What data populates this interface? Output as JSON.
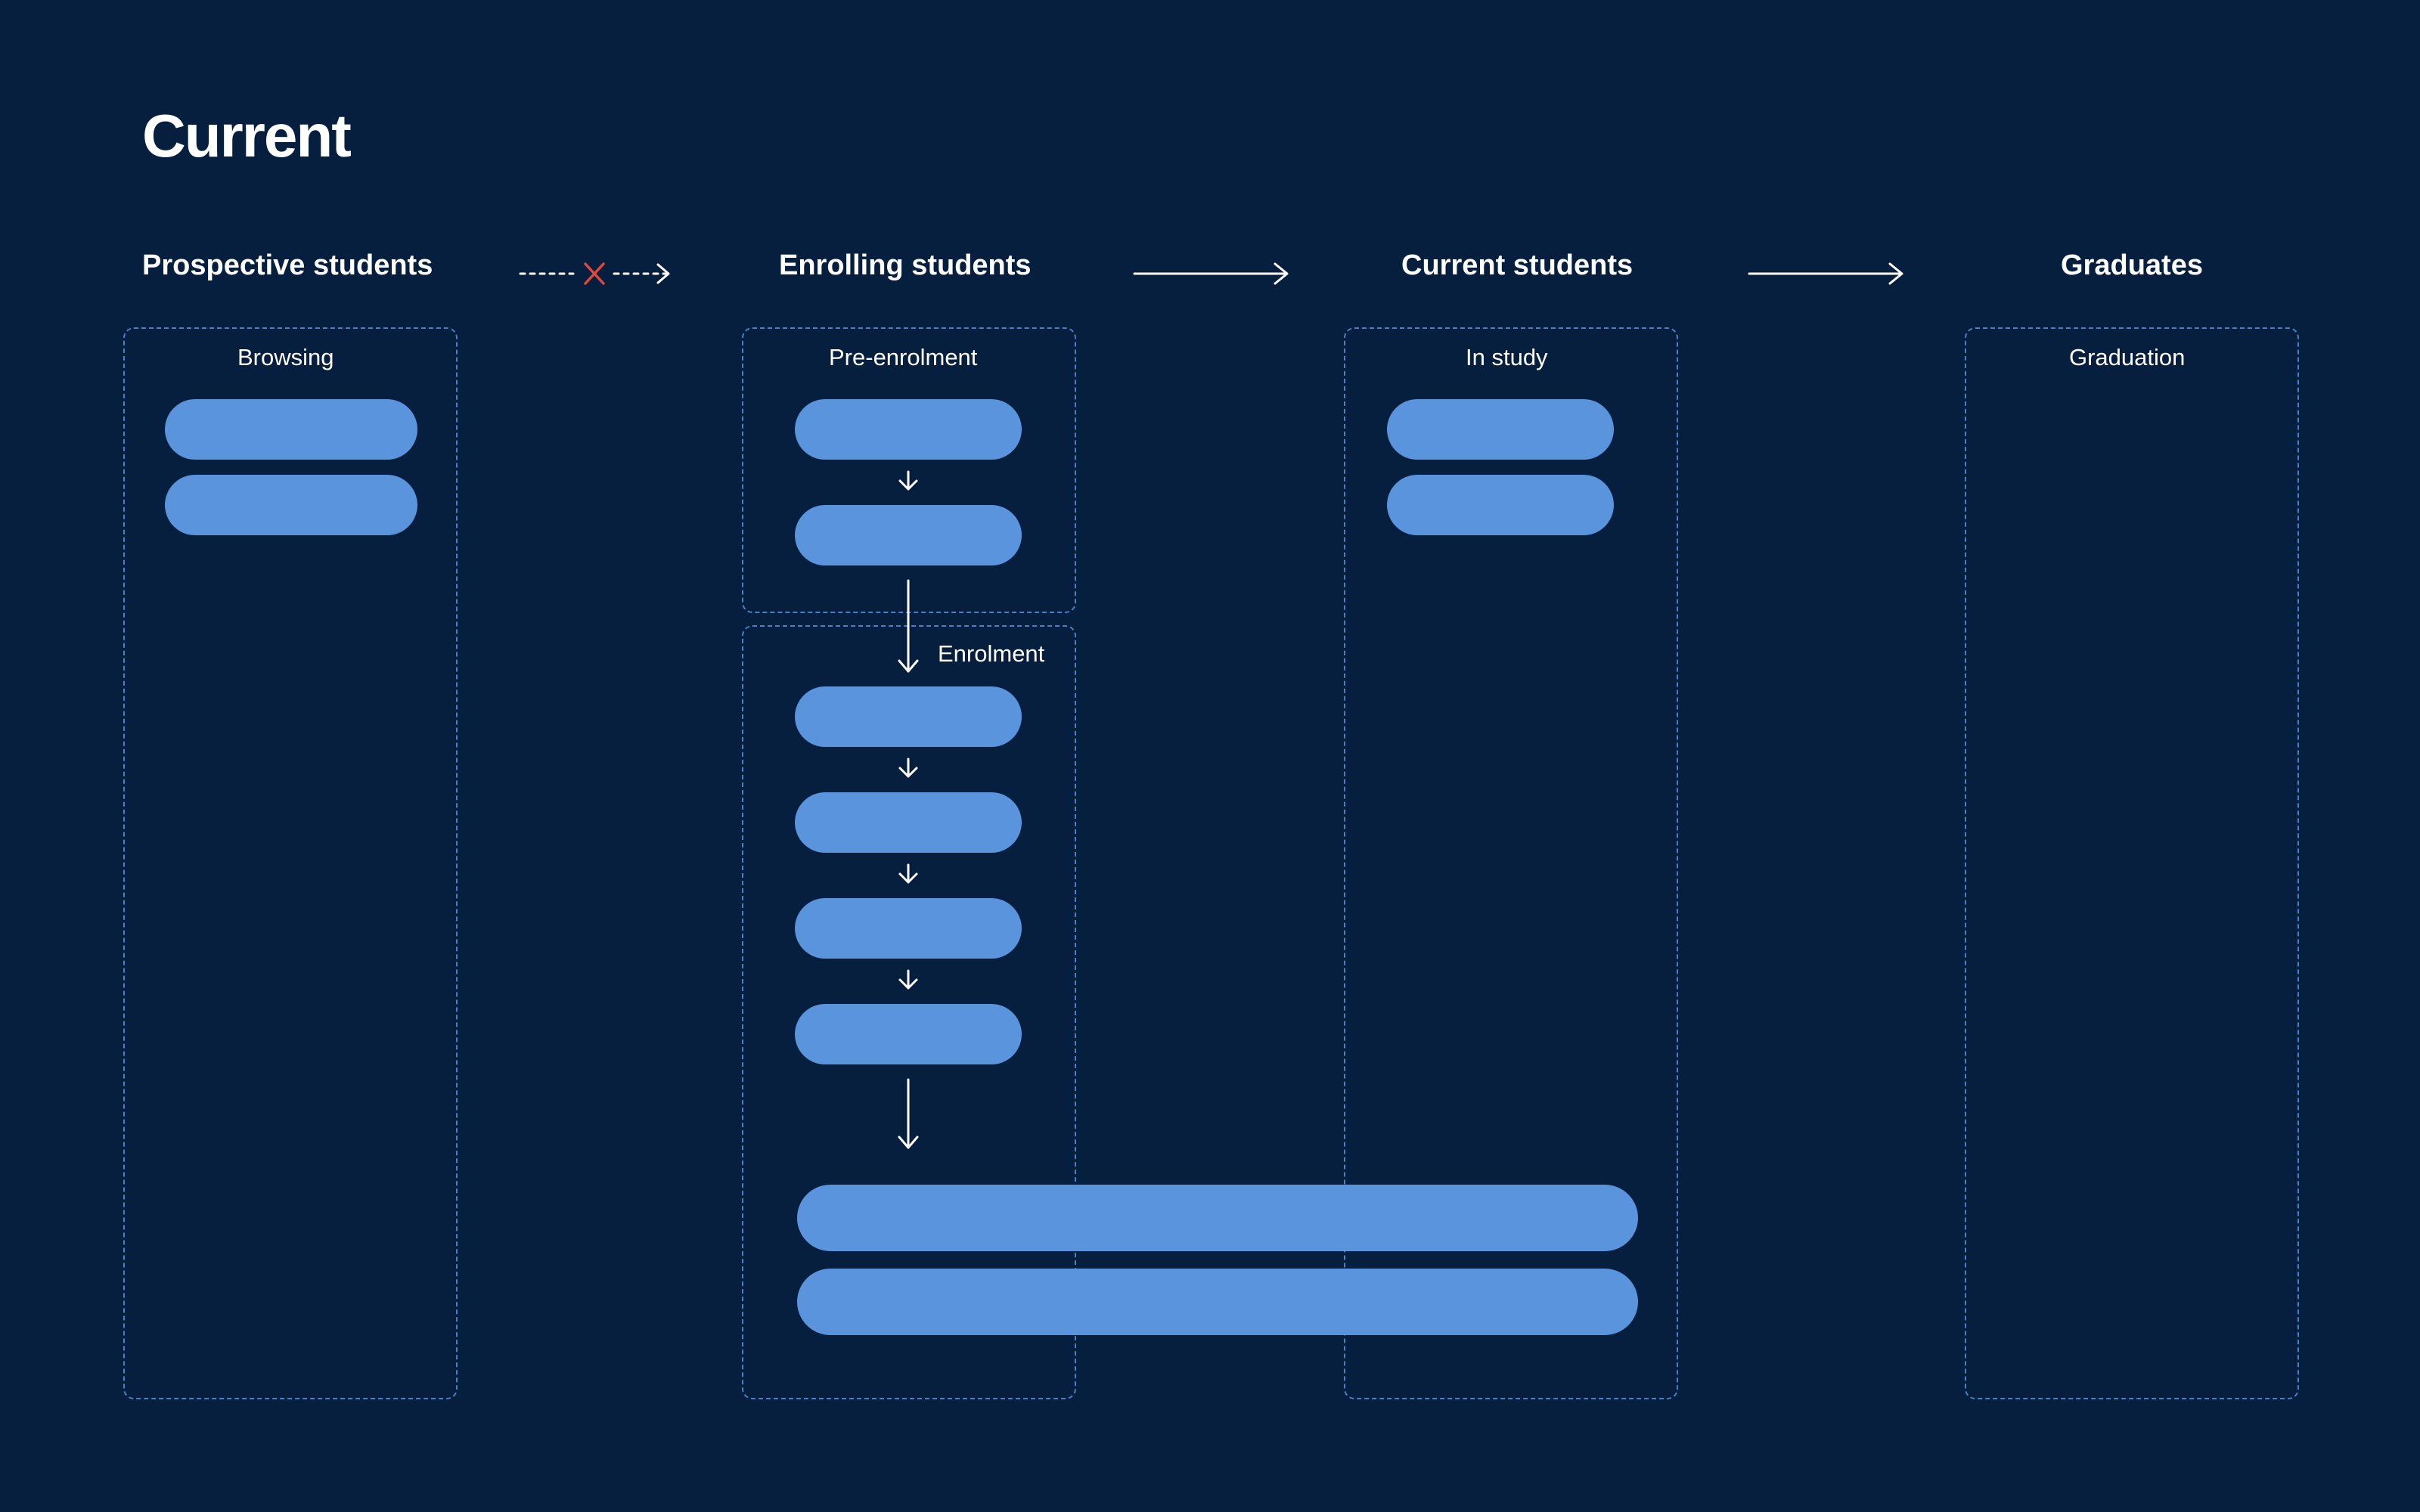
{
  "page": {
    "title": "Current"
  },
  "stages": [
    {
      "name": "Prospective students"
    },
    {
      "name": "Enrolling students"
    },
    {
      "name": "Current students"
    },
    {
      "name": "Graduates"
    }
  ],
  "groups": {
    "browsing": "Browsing",
    "pre_enrolment": "Pre-enrolment",
    "enrolment": "Enrolment",
    "in_study": "In study",
    "graduation": "Graduation"
  },
  "colors": {
    "background": "#061F3F",
    "pill": "#5A94DC",
    "dashed_border": "#4C7FC4",
    "text": "#FFFFFF",
    "blocked_marker": "#E0483E"
  },
  "connections": [
    {
      "from": "Prospective students",
      "to": "Enrolling students",
      "style": "dashed",
      "blocked": true
    },
    {
      "from": "Enrolling students",
      "to": "Current students",
      "style": "solid",
      "blocked": false
    },
    {
      "from": "Current students",
      "to": "Graduates",
      "style": "solid",
      "blocked": false
    }
  ]
}
